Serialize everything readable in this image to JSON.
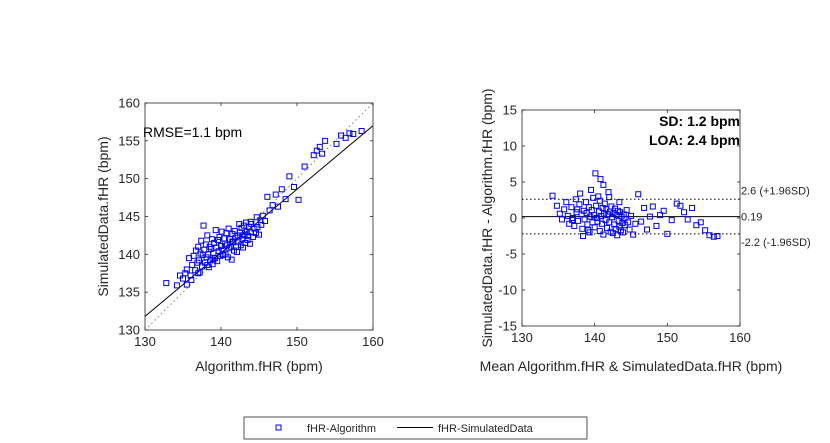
{
  "legend": {
    "entries": [
      {
        "label": "fHR-Algorithm",
        "marker": "square",
        "color": "#0000ff"
      },
      {
        "label": "fHR-SimulatedData",
        "marker": "line",
        "color": "#000000"
      }
    ],
    "placement": "bottom-center"
  },
  "chart_data": [
    {
      "type": "scatter",
      "title": "",
      "xlabel": "Algorithm.fHR (bpm)",
      "ylabel": "SimulatedData.fHR (bpm)",
      "xlim": [
        130,
        160
      ],
      "ylim": [
        130,
        160
      ],
      "xticks": [
        130,
        140,
        150,
        160
      ],
      "yticks": [
        130,
        135,
        140,
        145,
        150,
        155,
        160
      ],
      "annotation": "RMSE=1.1 bpm",
      "identity_line": {
        "x": [
          130,
          160
        ],
        "y": [
          130,
          160
        ],
        "style": "dotted"
      },
      "fit_line": {
        "x": [
          130,
          160
        ],
        "y": [
          131.8,
          157
        ],
        "style": "solid"
      },
      "series": [
        {
          "name": "fHR-Algorithm",
          "marker": "square",
          "color": "#0000ff",
          "points": [
            [
              132.8,
              136.2
            ],
            [
              134.2,
              135.9
            ],
            [
              134.6,
              137.2
            ],
            [
              135.0,
              136.8
            ],
            [
              135.3,
              137.5
            ],
            [
              135.5,
              138.0
            ],
            [
              135.8,
              139.5
            ],
            [
              136.0,
              137.2
            ],
            [
              136.2,
              138.6
            ],
            [
              136.4,
              139.8
            ],
            [
              136.6,
              137.9
            ],
            [
              136.7,
              140.5
            ],
            [
              136.9,
              138.9
            ],
            [
              137.0,
              141.0
            ],
            [
              137.1,
              139.2
            ],
            [
              137.2,
              137.6
            ],
            [
              137.3,
              140.1
            ],
            [
              137.4,
              141.8
            ],
            [
              137.5,
              138.4
            ],
            [
              137.6,
              139.9
            ],
            [
              137.7,
              143.8
            ],
            [
              137.8,
              140.6
            ],
            [
              137.9,
              138.9
            ],
            [
              138.0,
              141.3
            ],
            [
              138.1,
              139.6
            ],
            [
              138.2,
              142.5
            ],
            [
              138.3,
              140.0
            ],
            [
              138.4,
              138.3
            ],
            [
              138.5,
              141.0
            ],
            [
              138.6,
              139.2
            ],
            [
              138.7,
              140.7
            ],
            [
              138.8,
              142.0
            ],
            [
              138.9,
              138.7
            ],
            [
              139.0,
              140.2
            ],
            [
              139.1,
              141.5
            ],
            [
              139.2,
              139.5
            ],
            [
              139.3,
              143.2
            ],
            [
              139.4,
              140.9
            ],
            [
              139.5,
              139.1
            ],
            [
              139.6,
              141.9
            ],
            [
              139.7,
              140.4
            ],
            [
              139.8,
              142.3
            ],
            [
              139.9,
              139.8
            ],
            [
              140.0,
              141.1
            ],
            [
              140.1,
              143.0
            ],
            [
              140.2,
              140.6
            ],
            [
              140.3,
              139.9
            ],
            [
              140.4,
              142.1
            ],
            [
              140.5,
              141.4
            ],
            [
              140.6,
              140.0
            ],
            [
              140.7,
              142.8
            ],
            [
              140.8,
              141.2
            ],
            [
              140.9,
              139.6
            ],
            [
              141.0,
              143.4
            ],
            [
              141.1,
              140.8
            ],
            [
              141.2,
              142.0
            ],
            [
              141.3,
              141.0
            ],
            [
              141.4,
              139.3
            ],
            [
              141.5,
              142.7
            ],
            [
              141.6,
              141.6
            ],
            [
              141.7,
              140.5
            ],
            [
              141.8,
              143.1
            ],
            [
              141.9,
              142.2
            ],
            [
              142.0,
              141.0
            ],
            [
              142.1,
              140.3
            ],
            [
              142.2,
              142.5
            ],
            [
              142.3,
              141.7
            ],
            [
              142.4,
              144.0
            ],
            [
              142.5,
              142.9
            ],
            [
              142.6,
              141.2
            ],
            [
              142.7,
              143.5
            ],
            [
              142.8,
              142.0
            ],
            [
              142.9,
              140.9
            ],
            [
              143.0,
              143.8
            ],
            [
              143.1,
              142.6
            ],
            [
              143.2,
              141.5
            ],
            [
              143.3,
              144.2
            ],
            [
              143.4,
              143.0
            ],
            [
              143.5,
              141.9
            ],
            [
              143.6,
              142.4
            ],
            [
              143.7,
              143.6
            ],
            [
              143.8,
              141.4
            ],
            [
              143.9,
              142.9
            ],
            [
              144.0,
              144.0
            ],
            [
              144.2,
              142.3
            ],
            [
              144.4,
              143.4
            ],
            [
              144.6,
              142.8
            ],
            [
              144.8,
              143.6
            ],
            [
              145.0,
              142.6
            ],
            [
              145.3,
              143.9
            ],
            [
              145.5,
              145.1
            ],
            [
              145.8,
              144.4
            ],
            [
              146.1,
              147.6
            ],
            [
              146.4,
              145.8
            ],
            [
              146.8,
              146.5
            ],
            [
              147.2,
              147.9
            ],
            [
              147.5,
              146.3
            ],
            [
              148.0,
              148.6
            ],
            [
              148.5,
              147.3
            ],
            [
              149.0,
              150.3
            ],
            [
              149.6,
              148.9
            ],
            [
              150.2,
              147.2
            ],
            [
              151.0,
              151.6
            ],
            [
              152.2,
              153.1
            ],
            [
              152.6,
              153.7
            ],
            [
              153.0,
              154.2
            ],
            [
              153.3,
              153.3
            ],
            [
              153.7,
              155.0
            ],
            [
              155.2,
              154.6
            ],
            [
              155.8,
              155.7
            ],
            [
              156.4,
              155.4
            ],
            [
              156.9,
              156.0
            ],
            [
              157.4,
              155.9
            ],
            [
              158.5,
              156.3
            ],
            [
              141.5,
              141.7
            ],
            [
              140.2,
              140.0
            ],
            [
              139.0,
              139.3
            ],
            [
              142.8,
              142.5
            ],
            [
              138.2,
              138.6
            ],
            [
              137.0,
              137.5
            ],
            [
              136.1,
              136.6
            ],
            [
              135.5,
              136.0
            ],
            [
              143.9,
              144.3
            ],
            [
              144.7,
              144.9
            ],
            [
              145.2,
              144.5
            ]
          ]
        }
      ]
    },
    {
      "type": "scatter",
      "title": "",
      "xlabel": "Mean Algorithm.fHR & SimulatedData.fHR (bpm)",
      "ylabel": "SimulatedData.fHR - Algorithm.fHR (bpm)",
      "xlim": [
        130,
        160
      ],
      "ylim": [
        -15,
        15
      ],
      "xticks": [
        130,
        140,
        150,
        160
      ],
      "yticks": [
        -15,
        -10,
        -5,
        0,
        5,
        10,
        15
      ],
      "annotations": [
        "SD: 1.2 bpm",
        "LOA: 2.4 bpm"
      ],
      "reference_lines": [
        {
          "y": 2.6,
          "style": "dotted",
          "label": "2.6 (+1.96SD)"
        },
        {
          "y": 0.19,
          "style": "solid",
          "label": "0.19"
        },
        {
          "y": -2.2,
          "style": "dotted",
          "label": "-2.2 (-1.96SD)"
        }
      ],
      "series": [
        {
          "name": "fHR-Algorithm",
          "marker": "square",
          "color": "#0000ff",
          "points": [
            [
              134.2,
              3.1
            ],
            [
              134.8,
              1.7
            ],
            [
              135.2,
              0.6
            ],
            [
              135.5,
              -0.2
            ],
            [
              135.8,
              1.2
            ],
            [
              136.1,
              2.2
            ],
            [
              136.3,
              0.3
            ],
            [
              136.5,
              -0.8
            ],
            [
              136.8,
              1.5
            ],
            [
              137.0,
              0.0
            ],
            [
              137.2,
              -1.1
            ],
            [
              137.4,
              2.6
            ],
            [
              137.5,
              0.8
            ],
            [
              137.7,
              -0.4
            ],
            [
              137.9,
              1.9
            ],
            [
              138.0,
              3.4
            ],
            [
              138.2,
              0.5
            ],
            [
              138.3,
              -1.5
            ],
            [
              138.5,
              1.0
            ],
            [
              138.6,
              -0.2
            ],
            [
              138.8,
              2.2
            ],
            [
              138.9,
              0.7
            ],
            [
              139.0,
              -0.9
            ],
            [
              139.2,
              1.5
            ],
            [
              139.3,
              -2.0
            ],
            [
              139.4,
              0.2
            ],
            [
              139.6,
              1.1
            ],
            [
              139.7,
              -0.6
            ],
            [
              139.8,
              2.8
            ],
            [
              139.9,
              0.4
            ],
            [
              140.0,
              -1.3
            ],
            [
              140.1,
              6.2
            ],
            [
              140.2,
              1.7
            ],
            [
              140.3,
              0.0
            ],
            [
              140.4,
              -0.5
            ],
            [
              140.5,
              3.0
            ],
            [
              140.6,
              0.9
            ],
            [
              140.7,
              -1.8
            ],
            [
              140.8,
              5.4
            ],
            [
              140.9,
              0.3
            ],
            [
              141.0,
              -0.8
            ],
            [
              141.1,
              1.4
            ],
            [
              141.2,
              -2.3
            ],
            [
              141.3,
              0.6
            ],
            [
              141.4,
              2.0
            ],
            [
              141.5,
              -0.3
            ],
            [
              141.6,
              1.2
            ],
            [
              141.7,
              -1.4
            ],
            [
              141.8,
              0.5
            ],
            [
              141.9,
              3.6
            ],
            [
              142.0,
              -0.6
            ],
            [
              142.1,
              0.9
            ],
            [
              142.2,
              -1.9
            ],
            [
              142.3,
              1.6
            ],
            [
              142.4,
              0.1
            ],
            [
              142.5,
              -2.1
            ],
            [
              142.6,
              0.7
            ],
            [
              142.7,
              -0.9
            ],
            [
              142.8,
              1.3
            ],
            [
              142.9,
              -1.5
            ],
            [
              143.0,
              0.4
            ],
            [
              143.1,
              -2.4
            ],
            [
              143.2,
              1.0
            ],
            [
              143.3,
              -0.4
            ],
            [
              143.4,
              -1.2
            ],
            [
              143.5,
              0.8
            ],
            [
              143.6,
              -1.7
            ],
            [
              143.7,
              0.2
            ],
            [
              143.8,
              -0.7
            ],
            [
              143.9,
              -2.0
            ],
            [
              144.0,
              0.5
            ],
            [
              144.2,
              -1.0
            ],
            [
              144.4,
              1.1
            ],
            [
              144.6,
              -0.6
            ],
            [
              144.8,
              -1.6
            ],
            [
              145.0,
              0.3
            ],
            [
              145.3,
              -2.3
            ],
            [
              145.6,
              -0.8
            ],
            [
              146.0,
              3.3
            ],
            [
              146.4,
              -0.5
            ],
            [
              146.8,
              1.4
            ],
            [
              147.2,
              -1.6
            ],
            [
              147.6,
              0.2
            ],
            [
              148.0,
              1.6
            ],
            [
              148.5,
              -1.1
            ],
            [
              149.0,
              0.4
            ],
            [
              149.5,
              1.0
            ],
            [
              150.0,
              -2.2
            ],
            [
              150.6,
              -0.3
            ],
            [
              151.3,
              2.0
            ],
            [
              151.8,
              1.7
            ],
            [
              152.3,
              0.8
            ],
            [
              152.8,
              -0.2
            ],
            [
              153.4,
              1.4
            ],
            [
              154.0,
              -1.0
            ],
            [
              154.6,
              -0.6
            ],
            [
              155.2,
              -1.7
            ],
            [
              155.8,
              -2.4
            ],
            [
              156.4,
              -2.6
            ],
            [
              156.9,
              -2.5
            ],
            [
              141.2,
              4.6
            ],
            [
              139.5,
              3.9
            ],
            [
              140.7,
              2.4
            ],
            [
              142.0,
              2.9
            ],
            [
              138.4,
              -2.5
            ],
            [
              139.1,
              -1.7
            ],
            [
              143.4,
              2.2
            ],
            [
              144.1,
              -0.1
            ],
            [
              137.6,
              1.2
            ],
            [
              136.9,
              -0.3
            ]
          ]
        }
      ]
    }
  ]
}
